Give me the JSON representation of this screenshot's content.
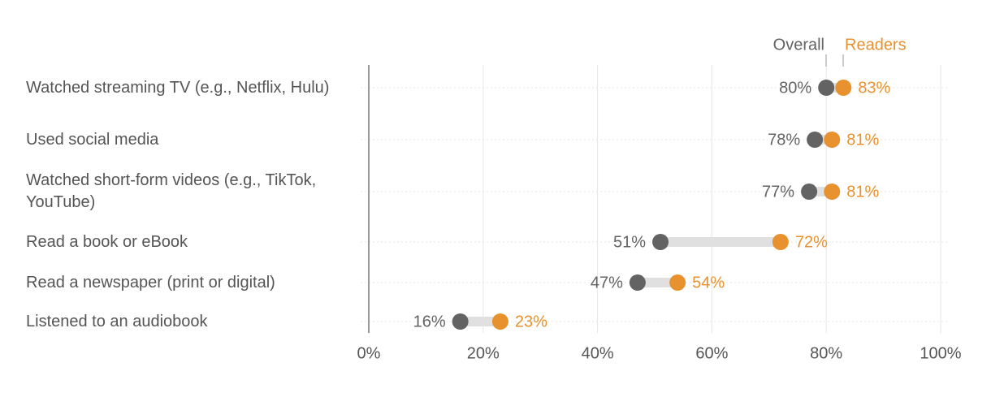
{
  "chart_data": {
    "type": "dumbbell",
    "categories": [
      "Watched streaming TV (e.g., Netflix, Hulu)",
      "Used social media",
      "Watched short-form videos (e.g., TikTok, YouTube)",
      "Read a book or eBook",
      "Read a newspaper (print or digital)",
      "Listened to an audiobook"
    ],
    "series": [
      {
        "name": "Overall",
        "color": "#636363",
        "values": [
          80,
          78,
          77,
          51,
          47,
          16
        ],
        "value_labels": [
          "80%",
          "78%",
          "77%",
          "51%",
          "47%",
          "16%"
        ]
      },
      {
        "name": "Readers",
        "color": "#e8912f",
        "values": [
          83,
          81,
          81,
          72,
          54,
          23
        ],
        "value_labels": [
          "83%",
          "81%",
          "81%",
          "72%",
          "54%",
          "23%"
        ]
      }
    ],
    "xlim": [
      0,
      100
    ],
    "xticks": [
      {
        "value": 0,
        "label": "0%"
      },
      {
        "value": 20,
        "label": "20%"
      },
      {
        "value": 40,
        "label": "40%"
      },
      {
        "value": 60,
        "label": "60%"
      },
      {
        "value": 80,
        "label": "80%"
      },
      {
        "value": 100,
        "label": "100%"
      }
    ],
    "grid": true
  }
}
